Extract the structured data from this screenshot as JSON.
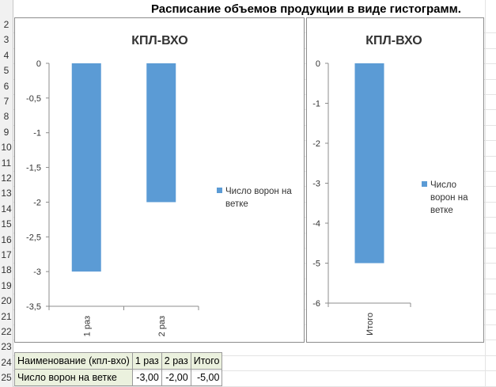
{
  "sheet": {
    "title": "Расписание объемов продукции в виде гистограмм.",
    "row_numbers": [
      "2",
      "3",
      "4",
      "5",
      "6",
      "7",
      "8",
      "9",
      "10",
      "11",
      "12",
      "13",
      "14",
      "15",
      "16",
      "17",
      "18",
      "19",
      "20",
      "21",
      "22",
      "23",
      "24",
      "25"
    ]
  },
  "chart_data": [
    {
      "type": "bar",
      "title": "КПЛ-ВХО",
      "categories": [
        "1 раз",
        "2 раз"
      ],
      "series": [
        {
          "name": "Число ворон на ветке",
          "values": [
            -3,
            -2
          ],
          "color": "#5b9bd5"
        }
      ],
      "ylim": [
        -3.5,
        0
      ],
      "yticks": [
        "0",
        "-0,5",
        "-1",
        "-1,5",
        "-2",
        "-2,5",
        "-3",
        "-3,5"
      ],
      "legend_lines": [
        "Число ворон на",
        "ветке"
      ],
      "legend": "right",
      "grid": false
    },
    {
      "type": "bar",
      "title": "КПЛ-ВХО",
      "categories": [
        "Итого"
      ],
      "series": [
        {
          "name": "Число ворон на ветке",
          "values": [
            -5
          ],
          "color": "#5b9bd5"
        }
      ],
      "ylim": [
        -6,
        0
      ],
      "yticks": [
        "0",
        "-1",
        "-2",
        "-3",
        "-4",
        "-5",
        "-6"
      ],
      "legend_lines": [
        "Число",
        "ворон на",
        "ветке"
      ],
      "legend": "right",
      "grid": false
    }
  ],
  "table": {
    "header": [
      "Наименование (кпл-вхо)",
      "1 раз",
      "2 раз",
      "Итого"
    ],
    "row": [
      "Число ворон на ветке",
      "-3,00",
      "-2,00",
      "-5,00"
    ]
  }
}
